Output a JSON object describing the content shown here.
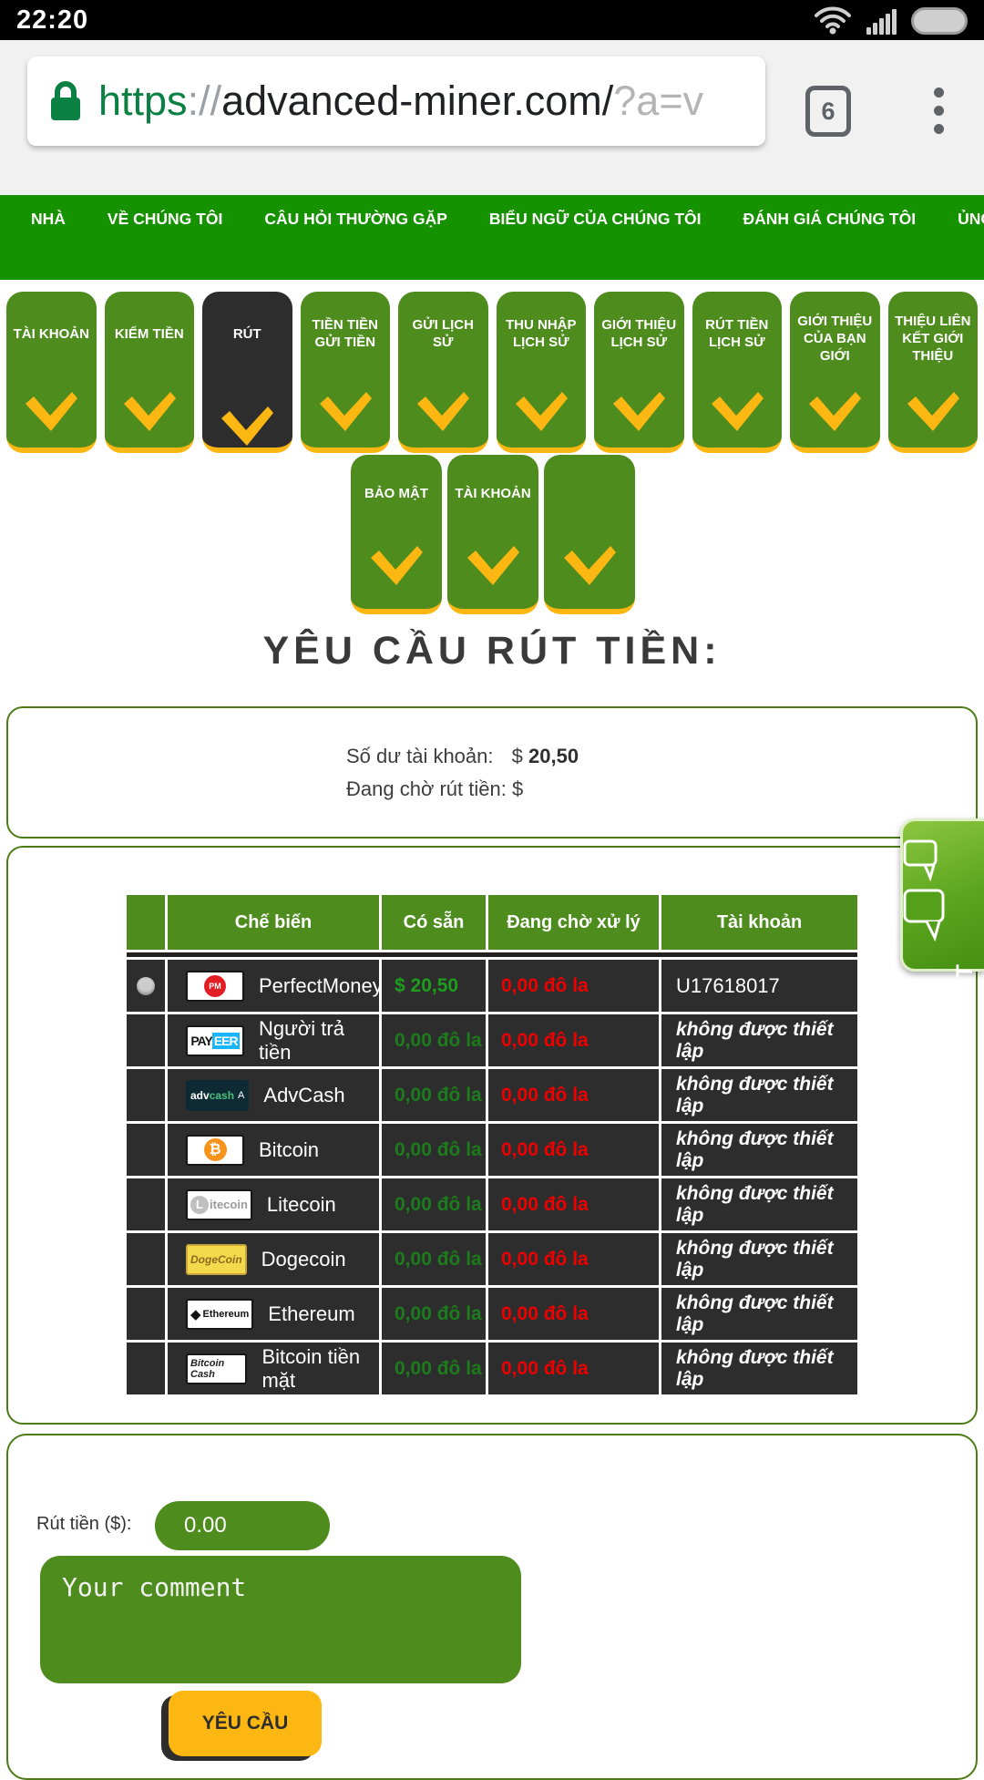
{
  "status_bar": {
    "time": "22:20"
  },
  "browser": {
    "url_scheme": "https",
    "url_separator": "://",
    "url_host": "advanced-miner.com/",
    "url_query": "?a=v",
    "tab_count": "6"
  },
  "nav": {
    "items": [
      "NHÀ",
      "VỀ CHÚNG TÔI",
      "CÂU HỎI THƯỜNG GẶP",
      "BIỂU NGỮ CỦA CHÚNG TÔI",
      "ĐÁNH GIÁ CHÚNG TÔI",
      "ỦNG HỘ"
    ]
  },
  "menu": {
    "row1": [
      {
        "label": "TÀI KHOẢN",
        "active": false
      },
      {
        "label": "KIẾM TIỀN",
        "active": false
      },
      {
        "label": "RÚT",
        "active": true
      },
      {
        "label": "TIỀN TIỀN GỬI TIỀN",
        "active": false
      },
      {
        "label": "GỬI LỊCH SỬ",
        "active": false
      },
      {
        "label": "THU NHẬP LỊCH SỬ",
        "active": false
      },
      {
        "label": "GIỚI THIỆU LỊCH SỬ",
        "active": false
      },
      {
        "label": "RÚT TIỀN LỊCH SỬ",
        "active": false
      },
      {
        "label": "GIỚI THIỆU CỦA BẠN GIỚI",
        "active": false
      },
      {
        "label": "THIỆU LIÊN KẾT GIỚI THIỆU",
        "active": false
      }
    ],
    "row2": [
      {
        "label": "BẢO MẬT"
      },
      {
        "label": "TÀI KHOẢN"
      },
      {
        "label": ""
      }
    ]
  },
  "page": {
    "title": "YÊU CẦU RÚT TIỀN:"
  },
  "balance": {
    "label1": "Số dư tài khoản:",
    "symbol1": "$",
    "value1": "20,50",
    "label2": "Đang chờ rút tiền:",
    "symbol2": "$",
    "value2": ""
  },
  "table": {
    "headers": [
      "",
      "Chế biến",
      "Có sẵn",
      "Đang chờ xử lý",
      "Tài khoản"
    ],
    "rows": [
      {
        "logo": {
          "type": "pm",
          "badge": "PM"
        },
        "name": "PerfectMoney",
        "available": "$ 20,50",
        "available_bright": true,
        "pending": "0,00 đô la",
        "account": "U17618017",
        "account_unset": false,
        "selected": true
      },
      {
        "logo": {
          "type": "payeer",
          "part1": "PAY",
          "part2": "EER"
        },
        "name": "Người trả tiền",
        "available": "0,00 đô la",
        "available_bright": false,
        "pending": "0,00 đô la",
        "account": "không được thiết lập",
        "account_unset": true,
        "selected": false
      },
      {
        "logo": {
          "type": "advcash",
          "part1": "adv",
          "part2": "cash",
          "part3": "A"
        },
        "name": "AdvCash",
        "available": "0,00 đô la",
        "available_bright": false,
        "pending": "0,00 đô la",
        "account": "không được thiết lập",
        "account_unset": true,
        "selected": false
      },
      {
        "logo": {
          "type": "bitcoin",
          "badge": "₿"
        },
        "name": "Bitcoin",
        "available": "0,00 đô la",
        "available_bright": false,
        "pending": "0,00 đô la",
        "account": "không được thiết lập",
        "account_unset": true,
        "selected": false
      },
      {
        "logo": {
          "type": "litecoin",
          "badge": "L",
          "text": "itecoin"
        },
        "name": "Litecoin",
        "available": "0,00 đô la",
        "available_bright": false,
        "pending": "0,00 đô la",
        "account": "không được thiết lập",
        "account_unset": true,
        "selected": false
      },
      {
        "logo": {
          "type": "dogecoin",
          "text": "DogeCoin"
        },
        "name": "Dogecoin",
        "available": "0,00 đô la",
        "available_bright": false,
        "pending": "0,00 đô la",
        "account": "không được thiết lập",
        "account_unset": true,
        "selected": false
      },
      {
        "logo": {
          "type": "ethereum",
          "badge": "◆",
          "text": "Ethereum"
        },
        "name": "Ethereum",
        "available": "0,00 đô la",
        "available_bright": false,
        "pending": "0,00 đô la",
        "account": "không được thiết lập",
        "account_unset": true,
        "selected": false
      },
      {
        "logo": {
          "type": "bitcoincash",
          "text": "Bitcoin Cash"
        },
        "name": "Bitcoin tiền mặt",
        "available": "0,00 đô la",
        "available_bright": false,
        "pending": "0,00 đô la",
        "account": "không được thiết lập",
        "account_unset": true,
        "selected": false
      }
    ]
  },
  "live_chat": {
    "label": "LIVE CHAT"
  },
  "form": {
    "amount_label": "Rút tiền ($):",
    "amount_value": "0.00",
    "comment_placeholder": "Your comment",
    "submit_label": "YÊU CẦU"
  },
  "colors": {
    "nav_green": "#169100",
    "button_green": "#4e8c1d",
    "accent_yellow": "#fcb712",
    "dark_row": "#2e2d2d",
    "pending_red": "#ef0000",
    "available_green": "#1c7c1c",
    "box_border_green": "#4c7d15"
  }
}
